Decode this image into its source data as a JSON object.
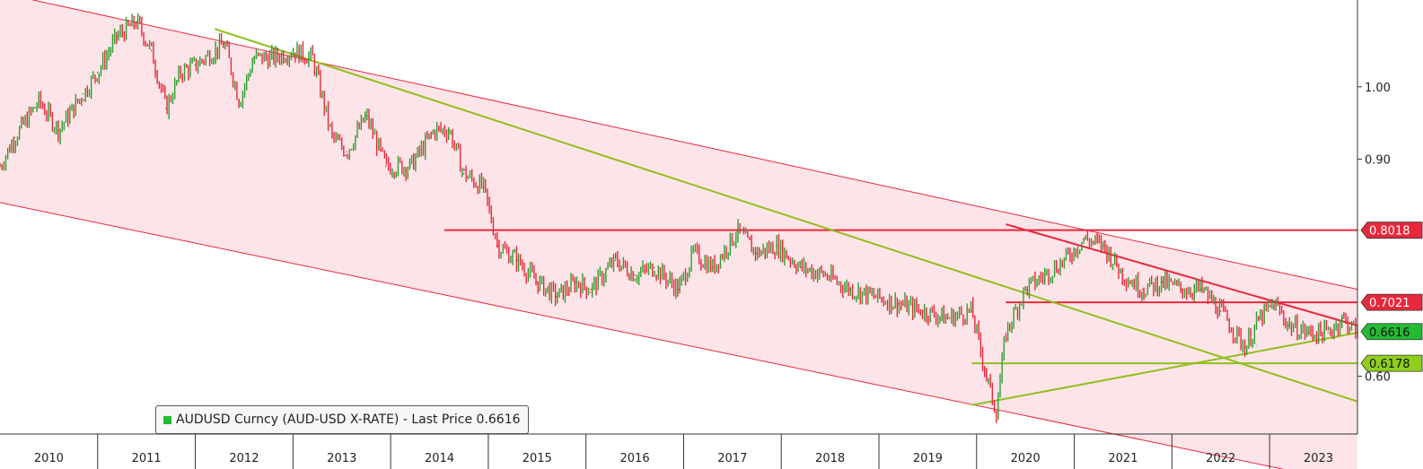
{
  "chart_data": {
    "type": "line",
    "title": "",
    "xlabel": "",
    "ylabel": "",
    "legend": {
      "label": "AUDUSD Curncy (AUD-USD X-RATE) - Last Price 0.6616",
      "placement": "bottom-left"
    },
    "xlim": [
      2010.0,
      2023.9
    ],
    "ylim": [
      0.52,
      1.12
    ],
    "x_ticks": [
      "2010",
      "2011",
      "2012",
      "2013",
      "2014",
      "2015",
      "2016",
      "2017",
      "2018",
      "2019",
      "2020",
      "2021",
      "2022",
      "2023"
    ],
    "y_ticks": [
      {
        "value": 1.0,
        "label": "1.00"
      },
      {
        "value": 0.9,
        "label": "0.90"
      },
      {
        "value": 0.6,
        "label": "0.60"
      }
    ],
    "price_tags": [
      {
        "value": 0.8018,
        "label": "0.8018",
        "color": "#e8283c"
      },
      {
        "value": 0.7021,
        "label": "0.7021",
        "color": "#e8283c"
      },
      {
        "value": 0.6616,
        "label": "0.6616",
        "color": "#22bb33"
      },
      {
        "value": 0.6178,
        "label": "0.6178",
        "color": "#8fcf1c"
      }
    ],
    "series": [
      {
        "name": "AUDUSD Curncy (AUD-USD X-RATE) - Last Price",
        "x": [
          2010.0,
          2010.15,
          2010.4,
          2010.6,
          2010.85,
          2011.0,
          2011.2,
          2011.4,
          2011.55,
          2011.7,
          2011.85,
          2012.0,
          2012.3,
          2012.45,
          2012.6,
          2012.8,
          2013.0,
          2013.2,
          2013.4,
          2013.55,
          2013.75,
          2013.95,
          2014.2,
          2014.45,
          2014.6,
          2014.75,
          2014.95,
          2015.1,
          2015.3,
          2015.5,
          2015.7,
          2015.9,
          2016.05,
          2016.3,
          2016.5,
          2016.7,
          2016.95,
          2017.1,
          2017.3,
          2017.55,
          2017.75,
          2017.95,
          2018.2,
          2018.45,
          2018.7,
          2018.95,
          2019.2,
          2019.45,
          2019.7,
          2019.95,
          2020.1,
          2020.2,
          2020.3,
          2020.5,
          2020.7,
          2020.9,
          2021.1,
          2021.3,
          2021.5,
          2021.7,
          2021.9,
          2022.1,
          2022.3,
          2022.5,
          2022.75,
          2022.9,
          2023.05,
          2023.2,
          2023.4,
          2023.6,
          2023.75,
          2023.9
        ],
        "y": [
          0.89,
          0.93,
          0.98,
          0.94,
          0.99,
          1.02,
          1.07,
          1.09,
          1.05,
          0.97,
          1.02,
          1.03,
          1.06,
          0.98,
          1.04,
          1.04,
          1.05,
          1.04,
          0.93,
          0.91,
          0.96,
          0.89,
          0.89,
          0.94,
          0.94,
          0.88,
          0.86,
          0.78,
          0.76,
          0.73,
          0.71,
          0.73,
          0.72,
          0.76,
          0.74,
          0.75,
          0.72,
          0.77,
          0.75,
          0.8,
          0.77,
          0.78,
          0.75,
          0.74,
          0.72,
          0.71,
          0.7,
          0.69,
          0.68,
          0.69,
          0.6,
          0.55,
          0.66,
          0.72,
          0.74,
          0.76,
          0.79,
          0.78,
          0.74,
          0.72,
          0.73,
          0.72,
          0.72,
          0.69,
          0.64,
          0.68,
          0.7,
          0.67,
          0.66,
          0.66,
          0.68,
          0.66
        ]
      }
    ],
    "trendlines": {
      "channel_upper": {
        "x": [
          2010.0,
          2023.9
        ],
        "y": [
          1.13,
          0.72
        ],
        "color": "#e8283c"
      },
      "channel_lower": {
        "x": [
          2010.0,
          2023.9
        ],
        "y": [
          0.84,
          0.45
        ],
        "color": "#e8283c"
      },
      "red_hline_high": {
        "x": [
          2014.55,
          2023.9
        ],
        "y": [
          0.8018,
          0.8018
        ],
        "color": "#e8283c"
      },
      "red_hline_low": {
        "x": [
          2020.3,
          2023.9
        ],
        "y": [
          0.7021,
          0.7021
        ],
        "color": "#e8283c"
      },
      "red_diagonal": {
        "x": [
          2020.3,
          2023.9
        ],
        "y": [
          0.81,
          0.67
        ],
        "color": "#e8283c"
      },
      "green_diagonal_down": {
        "x": [
          2012.2,
          2023.9
        ],
        "y": [
          1.08,
          0.565
        ],
        "color": "#8fbf1c"
      },
      "green_diagonal_up": {
        "x": [
          2019.95,
          2023.9
        ],
        "y": [
          0.56,
          0.66
        ],
        "color": "#8fbf1c"
      },
      "green_hline": {
        "x": [
          2019.95,
          2023.9
        ],
        "y": [
          0.6178,
          0.6178
        ],
        "color": "#8fbf1c"
      }
    },
    "grid": false,
    "colors": {
      "channel_fill": "#fde4e8",
      "up_candle": "#2f9e2f",
      "down_candle": "#e8283c"
    }
  }
}
